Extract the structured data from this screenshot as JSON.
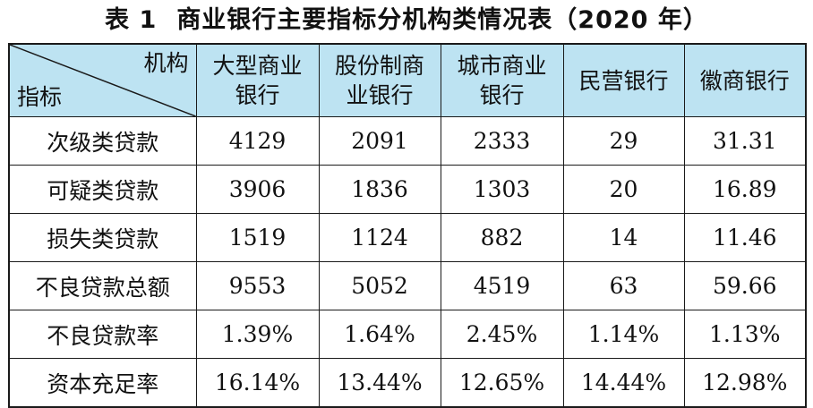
{
  "title": {
    "label": "表 1",
    "text": "商业银行主要指标分机构类情况表（2020 年）"
  },
  "table": {
    "corner": {
      "column_header": "机构",
      "row_header": "指标"
    },
    "columns": [
      {
        "line1": "大型商业",
        "line2": "银行"
      },
      {
        "line1": "股份制商",
        "line2": "业银行"
      },
      {
        "line1": "城市商业",
        "line2": "银行"
      },
      {
        "line1": "民营银行",
        "line2": ""
      },
      {
        "line1": "徽商银行",
        "line2": ""
      }
    ],
    "rows": [
      {
        "label": "次级类贷款",
        "values": [
          "4129",
          "2091",
          "2333",
          "29",
          "31.31"
        ]
      },
      {
        "label": "可疑类贷款",
        "values": [
          "3906",
          "1836",
          "1303",
          "20",
          "16.89"
        ]
      },
      {
        "label": "损失类贷款",
        "values": [
          "1519",
          "1124",
          "882",
          "14",
          "11.46"
        ]
      },
      {
        "label": "不良贷款总额",
        "values": [
          "9553",
          "5052",
          "4519",
          "63",
          "59.66"
        ]
      },
      {
        "label": "不良贷款率",
        "values": [
          "1.39%",
          "1.64%",
          "2.45%",
          "1.14%",
          "1.13%"
        ]
      },
      {
        "label": "资本充足率",
        "values": [
          "16.14%",
          "13.44%",
          "12.65%",
          "14.44%",
          "12.98%"
        ]
      }
    ],
    "header_bg": "#bde3f2"
  }
}
